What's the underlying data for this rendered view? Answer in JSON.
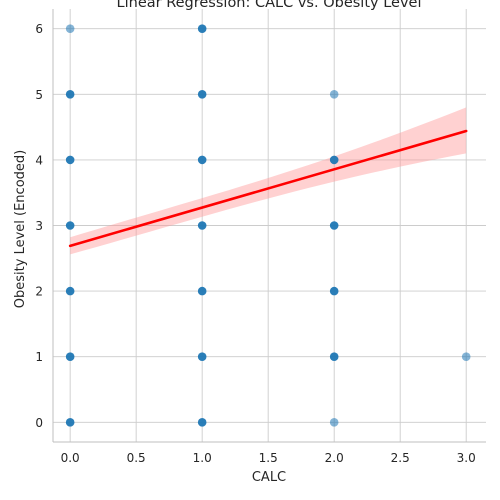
{
  "chart_data": {
    "type": "scatter",
    "title": "Linear Regression: CALC vs. Obesity Level",
    "xlabel": "CALC",
    "ylabel": "Obesity Level (Encoded)",
    "xlim": [
      -0.13,
      3.15
    ],
    "ylim": [
      -0.3,
      6.3
    ],
    "xticks": [
      0.0,
      0.5,
      1.0,
      1.5,
      2.0,
      2.5,
      3.0
    ],
    "xtick_labels": [
      "0.0",
      "0.5",
      "1.0",
      "1.5",
      "2.0",
      "2.5",
      "3.0"
    ],
    "yticks": [
      0,
      1,
      2,
      3,
      4,
      5,
      6
    ],
    "ytick_labels": [
      "0",
      "1",
      "2",
      "3",
      "4",
      "5",
      "6"
    ],
    "grid": true,
    "points": [
      {
        "x": 0,
        "y": 0,
        "density": "high"
      },
      {
        "x": 0,
        "y": 1,
        "density": "high"
      },
      {
        "x": 0,
        "y": 2,
        "density": "high"
      },
      {
        "x": 0,
        "y": 3,
        "density": "high"
      },
      {
        "x": 0,
        "y": 4,
        "density": "high"
      },
      {
        "x": 0,
        "y": 5,
        "density": "high"
      },
      {
        "x": 0,
        "y": 6,
        "density": "low"
      },
      {
        "x": 1,
        "y": 0,
        "density": "high"
      },
      {
        "x": 1,
        "y": 1,
        "density": "high"
      },
      {
        "x": 1,
        "y": 2,
        "density": "high"
      },
      {
        "x": 1,
        "y": 3,
        "density": "high"
      },
      {
        "x": 1,
        "y": 4,
        "density": "high"
      },
      {
        "x": 1,
        "y": 5,
        "density": "high"
      },
      {
        "x": 1,
        "y": 6,
        "density": "high"
      },
      {
        "x": 2,
        "y": 0,
        "density": "low"
      },
      {
        "x": 2,
        "y": 1,
        "density": "high"
      },
      {
        "x": 2,
        "y": 2,
        "density": "high"
      },
      {
        "x": 2,
        "y": 3,
        "density": "high"
      },
      {
        "x": 2,
        "y": 4,
        "density": "high"
      },
      {
        "x": 2,
        "y": 5,
        "density": "low"
      },
      {
        "x": 3,
        "y": 1,
        "density": "low"
      }
    ],
    "regression": {
      "x": [
        0,
        3
      ],
      "y": [
        2.69,
        4.44
      ],
      "ci_lower": [
        2.56,
        4.1
      ],
      "ci_upper": [
        2.82,
        4.8
      ]
    },
    "colors": {
      "points": "#1f77b4",
      "regression_line": "#ff0000",
      "ci_band": "#ff9999",
      "grid": "#cccccc",
      "spine": "#bfbfbf"
    }
  }
}
